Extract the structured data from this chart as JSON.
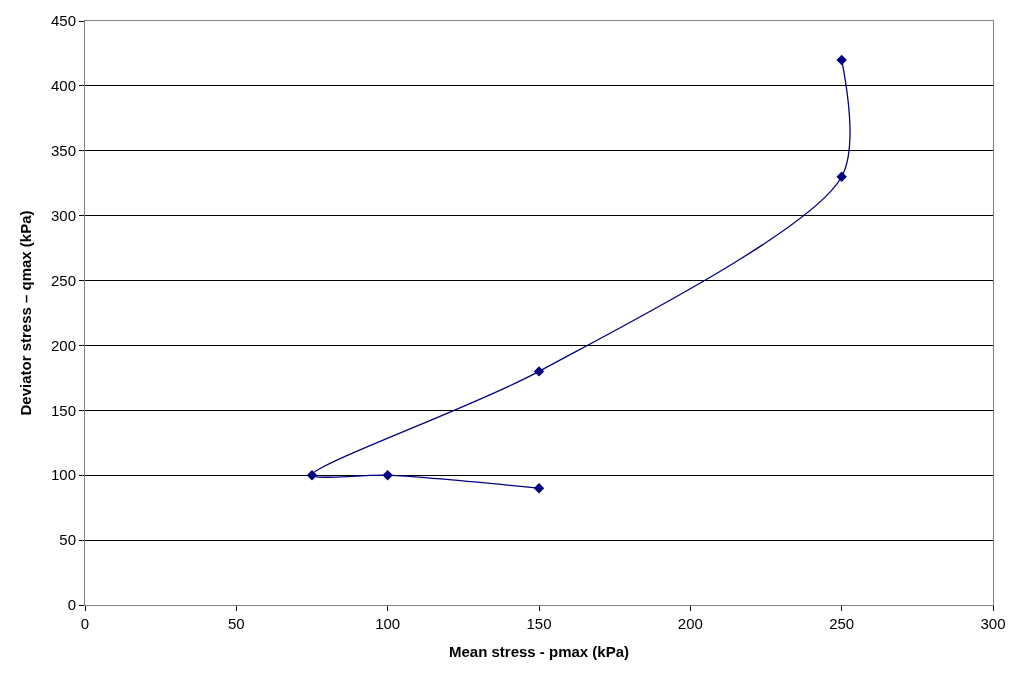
{
  "chart_data": {
    "type": "line",
    "xlabel": "Mean stress - pmax (kPa)",
    "ylabel": "Deviator stress – qmax (kPa)",
    "x": [
      150,
      100,
      75,
      150,
      250,
      250
    ],
    "series": [
      {
        "color": "#000080",
        "values": [
          90,
          100,
          100,
          180,
          330,
          420
        ]
      }
    ],
    "xlim": [
      0,
      300
    ],
    "xticks": [
      0,
      50,
      100,
      150,
      200,
      250,
      300
    ],
    "ylim": [
      0,
      450
    ],
    "yticks": [
      0,
      50,
      100,
      150,
      200,
      250,
      300,
      350,
      400,
      450
    ],
    "grid": "y",
    "marker": "diamond",
    "line_style": "solid",
    "legend": false
  }
}
